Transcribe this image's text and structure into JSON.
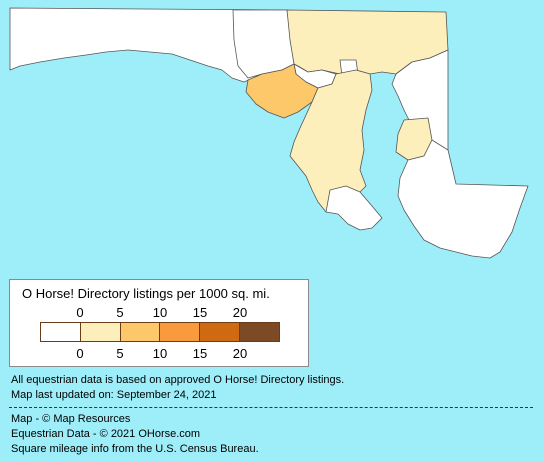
{
  "map": {
    "fill_colors": {
      "none": "#ffffff",
      "bin_0_5": "#fdefbc",
      "bin_5_10": "#fcc86a",
      "water": "#9eeefa",
      "outline": "#555555"
    }
  },
  "legend": {
    "title": "O Horse! Directory listings per 1000 sq. mi.",
    "top_ticks": [
      "0",
      "5",
      "10",
      "15",
      "20"
    ],
    "bottom_ticks": [
      "0",
      "5",
      "10",
      "15",
      "20"
    ],
    "bins": [
      {
        "range": "0",
        "color": "#ffffff"
      },
      {
        "range": "0-5",
        "color": "#fdefbc"
      },
      {
        "range": "5-10",
        "color": "#fcc86a"
      },
      {
        "range": "10-15",
        "color": "#f99a3c"
      },
      {
        "range": "15-20",
        "color": "#cf6a12"
      },
      {
        "range": "20+",
        "color": "#7c4a24"
      }
    ]
  },
  "notes": {
    "line1": "All equestrian data is based on approved O Horse! Directory listings.",
    "line2": "Map last updated on: September 24, 2021",
    "credit1": "Map - © Map Resources",
    "credit2": "Equestrian Data - © 2021 OHorse.com",
    "credit3": "Square mileage info from the U.S. Census Bureau."
  }
}
